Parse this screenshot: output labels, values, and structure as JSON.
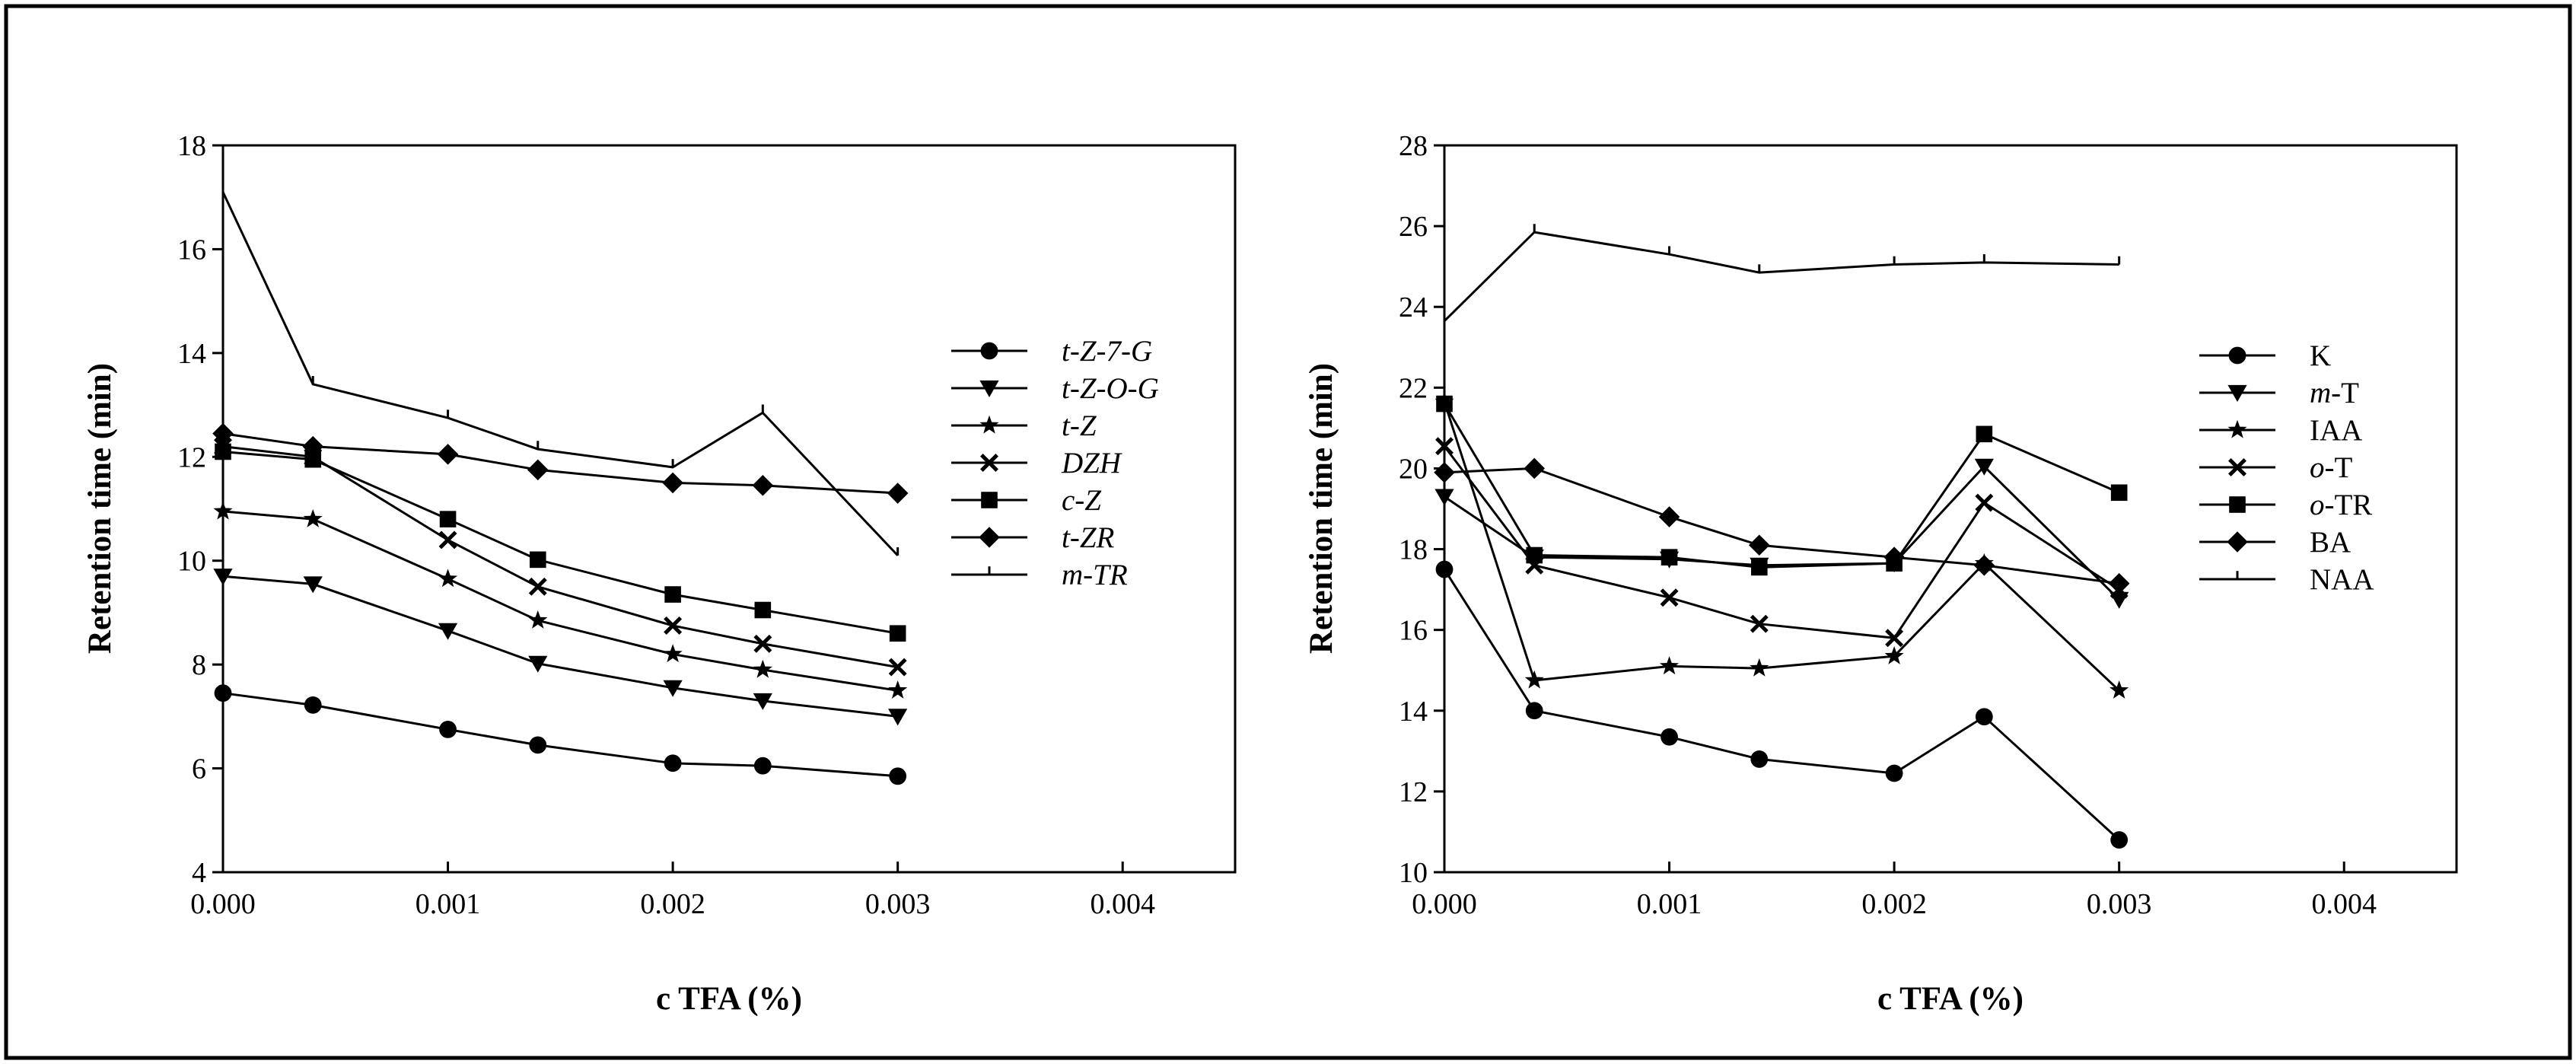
{
  "chart_data": [
    {
      "type": "line",
      "title": "",
      "xlabel": "c TFA (%)",
      "ylabel": "Retention time (min)",
      "xlim": [
        0.0,
        0.0045
      ],
      "ylim": [
        4,
        18
      ],
      "xticks": [
        0.0,
        0.001,
        0.002,
        0.003,
        0.004
      ],
      "xtick_labels": [
        "0.000",
        "0.001",
        "0.002",
        "0.003",
        "0.004"
      ],
      "yticks": [
        4,
        6,
        8,
        10,
        12,
        14,
        16,
        18
      ],
      "ytick_labels": [
        "4",
        "6",
        "8",
        "10",
        "12",
        "14",
        "16",
        "18"
      ],
      "legend_position": "right",
      "legend_italic": true,
      "series": [
        {
          "name": "t-Z-7-G",
          "marker": "circle",
          "x": [
            0,
            0.0004,
            0.001,
            0.0014,
            0.002,
            0.0024,
            0.003
          ],
          "values": [
            7.45,
            7.22,
            6.75,
            6.45,
            6.1,
            6.05,
            5.85
          ]
        },
        {
          "name": "t-Z-O-G",
          "marker": "triangle-down",
          "x": [
            0,
            0.0004,
            0.001,
            0.0014,
            0.002,
            0.0024,
            0.003
          ],
          "values": [
            9.7,
            9.55,
            8.65,
            8.02,
            7.55,
            7.3,
            7.0
          ]
        },
        {
          "name": "t-Z",
          "marker": "star",
          "x": [
            0,
            0.0004,
            0.001,
            0.0014,
            0.002,
            0.0024,
            0.003
          ],
          "values": [
            10.95,
            10.8,
            9.65,
            8.85,
            8.2,
            7.9,
            7.5
          ]
        },
        {
          "name": "DZH",
          "marker": "x",
          "x": [
            0,
            0.0004,
            0.001,
            0.0014,
            0.002,
            0.0024,
            0.003
          ],
          "values": [
            12.2,
            12.0,
            10.4,
            9.5,
            8.75,
            8.4,
            7.95
          ]
        },
        {
          "name": "c-Z",
          "marker": "square",
          "x": [
            0,
            0.0004,
            0.001,
            0.0014,
            0.002,
            0.0024,
            0.003
          ],
          "values": [
            12.1,
            11.95,
            10.8,
            10.02,
            9.35,
            9.05,
            8.6
          ]
        },
        {
          "name": "t-ZR",
          "marker": "diamond",
          "x": [
            0,
            0.0004,
            0.001,
            0.0014,
            0.002,
            0.0024,
            0.003
          ],
          "values": [
            12.45,
            12.2,
            12.05,
            11.75,
            11.5,
            11.45,
            11.3
          ]
        },
        {
          "name": "m-TR",
          "marker": "tick",
          "x": [
            0,
            0.0004,
            0.001,
            0.0014,
            0.002,
            0.0024,
            0.003
          ],
          "values": [
            17.1,
            13.4,
            12.75,
            12.15,
            11.8,
            12.85,
            10.1
          ]
        }
      ]
    },
    {
      "type": "line",
      "title": "",
      "xlabel": "c TFA (%)",
      "ylabel": "Retention time (min)",
      "xlim": [
        0.0,
        0.0045
      ],
      "ylim": [
        10,
        28
      ],
      "xticks": [
        0.0,
        0.001,
        0.002,
        0.003,
        0.004
      ],
      "xtick_labels": [
        "0.000",
        "0.001",
        "0.002",
        "0.003",
        "0.004"
      ],
      "yticks": [
        10,
        12,
        14,
        16,
        18,
        20,
        22,
        24,
        26,
        28
      ],
      "ytick_labels": [
        "10",
        "12",
        "14",
        "16",
        "18",
        "20",
        "22",
        "24",
        "26",
        "28"
      ],
      "legend_position": "right",
      "legend_italic": false,
      "series": [
        {
          "name": "K",
          "marker": "circle",
          "x": [
            0,
            0.0004,
            0.001,
            0.0014,
            0.002,
            0.0024,
            0.003
          ],
          "values": [
            17.5,
            14.0,
            13.35,
            12.8,
            12.45,
            13.85,
            10.8
          ]
        },
        {
          "name": "m-T",
          "prefix": "m",
          "suffix": "-T",
          "marker": "triangle-down",
          "x": [
            0,
            0.0004,
            0.001,
            0.0014,
            0.002,
            0.0024,
            0.003
          ],
          "values": [
            19.3,
            17.8,
            17.75,
            17.6,
            17.65,
            20.05,
            16.75
          ]
        },
        {
          "name": "IAA",
          "marker": "star",
          "x": [
            0,
            0.0004,
            0.001,
            0.0014,
            0.002,
            0.0024,
            0.003
          ],
          "values": [
            21.65,
            14.75,
            15.1,
            15.05,
            15.35,
            17.65,
            14.5
          ]
        },
        {
          "name": "o-T",
          "prefix": "o",
          "suffix": "-T",
          "marker": "x",
          "x": [
            0,
            0.0004,
            0.001,
            0.0014,
            0.002,
            0.0024,
            0.003
          ],
          "values": [
            20.55,
            17.6,
            16.8,
            16.15,
            15.8,
            19.15,
            17.0
          ]
        },
        {
          "name": "o-TR",
          "prefix": "o",
          "suffix": "-TR",
          "marker": "square",
          "x": [
            0,
            0.0004,
            0.001,
            0.0014,
            0.002,
            0.0024,
            0.003
          ],
          "values": [
            21.6,
            17.85,
            17.8,
            17.55,
            17.65,
            20.85,
            19.4
          ]
        },
        {
          "name": "BA",
          "marker": "diamond",
          "x": [
            0,
            0.0004,
            0.001,
            0.0014,
            0.002,
            0.0024,
            0.003
          ],
          "values": [
            19.9,
            20.0,
            18.8,
            18.1,
            17.8,
            17.6,
            17.15
          ]
        },
        {
          "name": "NAA",
          "marker": "tick",
          "x": [
            0,
            0.0004,
            0.001,
            0.0014,
            0.002,
            0.0024,
            0.003
          ],
          "values": [
            23.65,
            25.85,
            25.3,
            24.85,
            25.05,
            25.1,
            25.05
          ]
        }
      ]
    }
  ]
}
